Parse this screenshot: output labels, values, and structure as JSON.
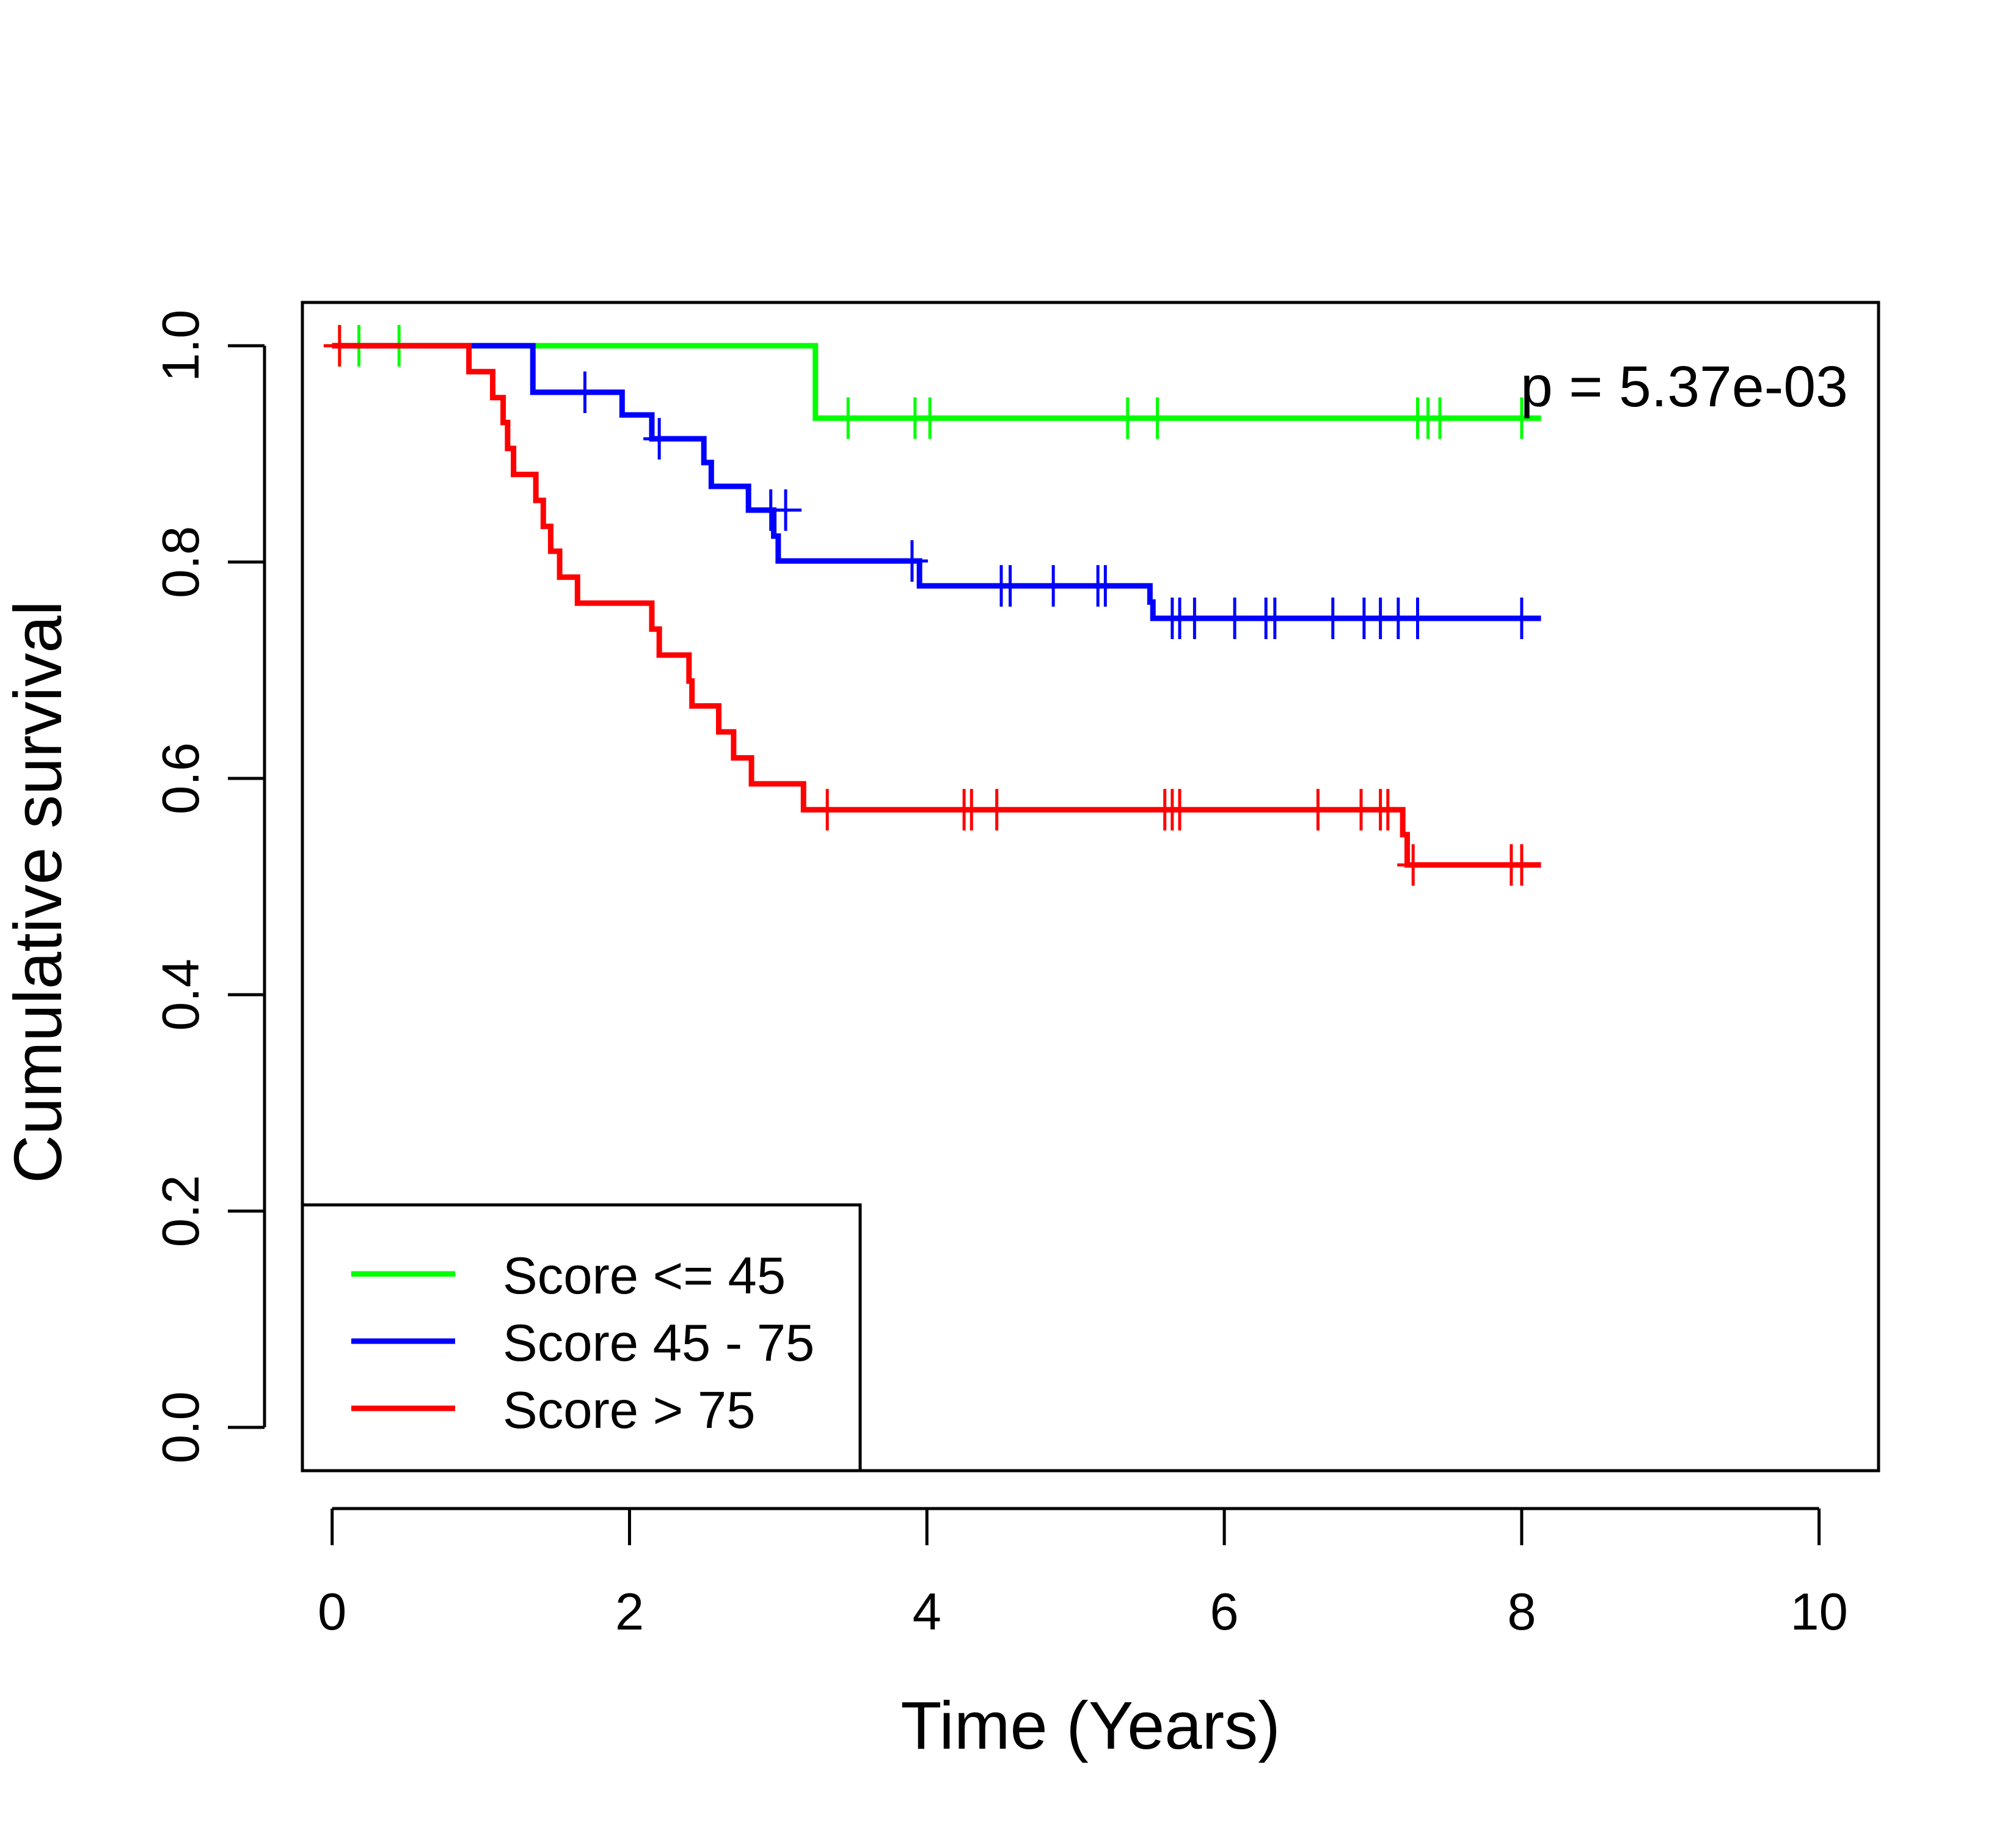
{
  "chart_data": {
    "type": "line",
    "subtype": "kaplan-meier",
    "xlabel": "Time (Years)",
    "ylabel": "Cumulative survival",
    "xlim": [
      -0.2,
      10.4
    ],
    "ylim": [
      -0.04,
      1.04
    ],
    "x_ticks": [
      0,
      2,
      4,
      6,
      8,
      10
    ],
    "x_tick_labels": [
      "0",
      "2",
      "4",
      "6",
      "8",
      "10"
    ],
    "y_ticks": [
      0.0,
      0.2,
      0.4,
      0.6,
      0.8,
      1.0
    ],
    "y_tick_labels": [
      "0.0",
      "0.2",
      "0.4",
      "0.6",
      "0.8",
      "1.0"
    ],
    "grid": false,
    "annotation": "p = 5.37e-03",
    "legend_position": "bottom-left",
    "series": [
      {
        "name": "Score <= 45",
        "color": "#00ff00",
        "steps": [
          [
            0.0,
            1.0
          ],
          [
            3.25,
            0.933
          ],
          [
            8.13,
            0.933
          ]
        ],
        "censors": [
          [
            0.05,
            1.0
          ],
          [
            0.18,
            1.0
          ],
          [
            0.45,
            1.0
          ],
          [
            3.47,
            0.933
          ],
          [
            3.92,
            0.933
          ],
          [
            4.02,
            0.933
          ],
          [
            5.35,
            0.933
          ],
          [
            5.55,
            0.933
          ],
          [
            7.3,
            0.933
          ],
          [
            7.37,
            0.933
          ],
          [
            7.45,
            0.933
          ],
          [
            8.0,
            0.933
          ]
        ]
      },
      {
        "name": "Score 45 - 75",
        "color": "#0000ff",
        "steps": [
          [
            0.0,
            1.0
          ],
          [
            1.35,
            0.957
          ],
          [
            1.95,
            0.936
          ],
          [
            2.15,
            0.914
          ],
          [
            2.5,
            0.892
          ],
          [
            2.55,
            0.87
          ],
          [
            2.8,
            0.848
          ],
          [
            2.97,
            0.824
          ],
          [
            3.0,
            0.801
          ],
          [
            3.95,
            0.778
          ],
          [
            5.5,
            0.763
          ],
          [
            5.52,
            0.748
          ],
          [
            8.13,
            0.748
          ]
        ],
        "censors": [
          [
            1.7,
            0.957
          ],
          [
            2.2,
            0.914
          ],
          [
            2.95,
            0.848
          ],
          [
            3.05,
            0.848
          ],
          [
            3.9,
            0.801
          ],
          [
            4.5,
            0.778
          ],
          [
            4.56,
            0.778
          ],
          [
            4.85,
            0.778
          ],
          [
            5.15,
            0.778
          ],
          [
            5.2,
            0.778
          ],
          [
            5.65,
            0.748
          ],
          [
            5.7,
            0.748
          ],
          [
            5.8,
            0.748
          ],
          [
            6.07,
            0.748
          ],
          [
            6.28,
            0.748
          ],
          [
            6.34,
            0.748
          ],
          [
            6.73,
            0.748
          ],
          [
            6.94,
            0.748
          ],
          [
            7.05,
            0.748
          ],
          [
            7.17,
            0.748
          ],
          [
            7.3,
            0.748
          ],
          [
            8.0,
            0.748
          ]
        ]
      },
      {
        "name": "Score > 75",
        "color": "#ff0000",
        "steps": [
          [
            0.0,
            1.0
          ],
          [
            0.92,
            0.976
          ],
          [
            1.08,
            0.952
          ],
          [
            1.15,
            0.929
          ],
          [
            1.18,
            0.905
          ],
          [
            1.22,
            0.881
          ],
          [
            1.37,
            0.857
          ],
          [
            1.42,
            0.833
          ],
          [
            1.47,
            0.81
          ],
          [
            1.53,
            0.786
          ],
          [
            1.65,
            0.762
          ],
          [
            2.15,
            0.738
          ],
          [
            2.2,
            0.714
          ],
          [
            2.4,
            0.69
          ],
          [
            2.42,
            0.667
          ],
          [
            2.6,
            0.643
          ],
          [
            2.7,
            0.619
          ],
          [
            2.82,
            0.595
          ],
          [
            3.17,
            0.571
          ],
          [
            7.2,
            0.548
          ],
          [
            7.23,
            0.52
          ],
          [
            8.13,
            0.52
          ]
        ],
        "censors": [
          [
            0.05,
            1.0
          ],
          [
            3.33,
            0.571
          ],
          [
            4.25,
            0.571
          ],
          [
            4.3,
            0.571
          ],
          [
            4.47,
            0.571
          ],
          [
            5.6,
            0.571
          ],
          [
            5.65,
            0.571
          ],
          [
            5.7,
            0.571
          ],
          [
            6.63,
            0.571
          ],
          [
            6.92,
            0.571
          ],
          [
            7.05,
            0.571
          ],
          [
            7.1,
            0.571
          ],
          [
            7.27,
            0.52
          ],
          [
            7.93,
            0.52
          ],
          [
            8.0,
            0.52
          ]
        ]
      }
    ]
  }
}
